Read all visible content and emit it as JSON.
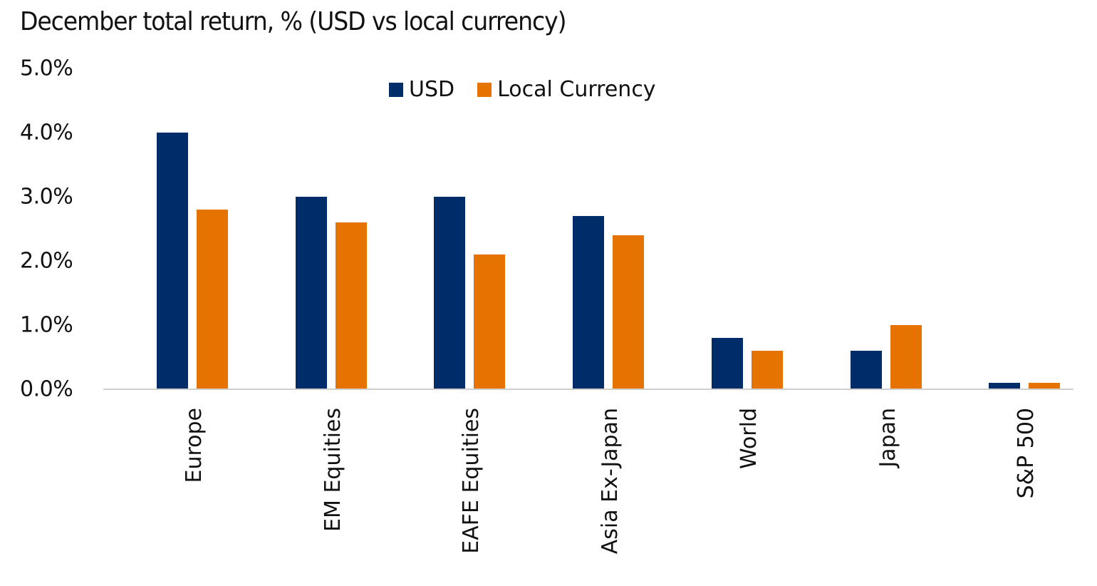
{
  "chart_data": {
    "type": "bar",
    "title": "December total return, % (USD vs local currency)",
    "xlabel": "",
    "ylabel": "",
    "ylim": [
      0,
      5
    ],
    "yticks": [
      "0.0%",
      "1.0%",
      "2.0%",
      "3.0%",
      "4.0%",
      "5.0%"
    ],
    "grid": false,
    "legend_position": "top",
    "categories": [
      "Europe",
      "EM Equities",
      "EAFE Equities",
      "Asia Ex-Japan",
      "World",
      "Japan",
      "S&P 500"
    ],
    "series": [
      {
        "name": "USD",
        "color": "#002D6A",
        "values": [
          4.0,
          3.0,
          3.0,
          2.7,
          0.8,
          0.6,
          0.1
        ]
      },
      {
        "name": "Local Currency",
        "color": "#E67300",
        "values": [
          2.8,
          2.6,
          2.1,
          2.4,
          0.6,
          1.0,
          0.1
        ]
      }
    ]
  }
}
